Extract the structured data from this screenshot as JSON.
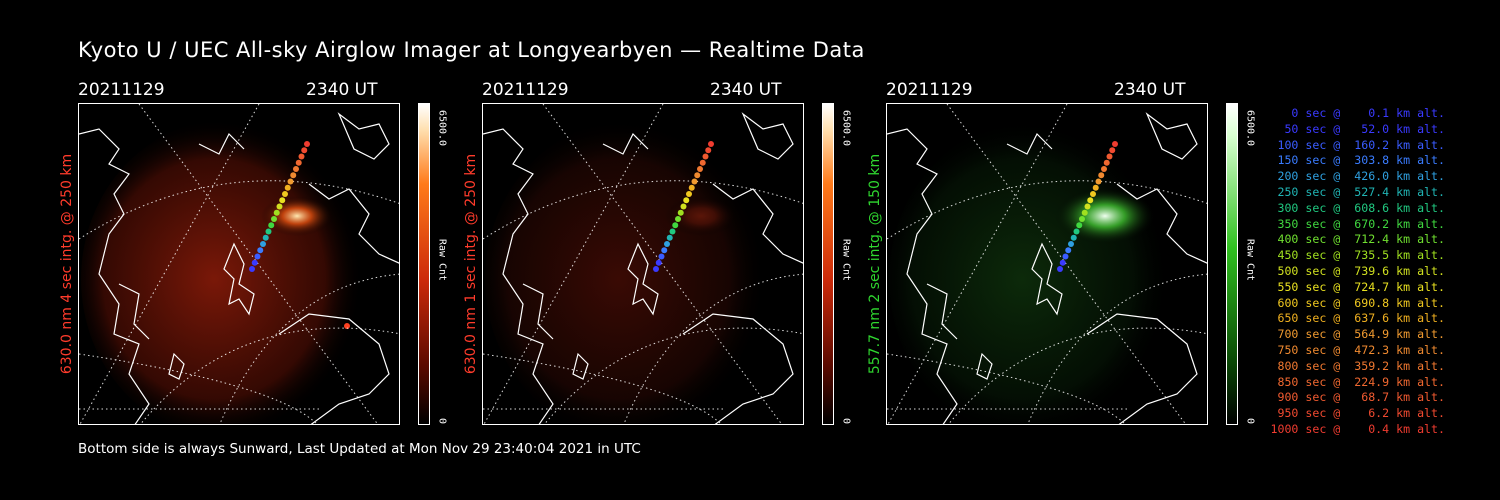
{
  "title": "Kyoto U / UEC All-sky Airglow Imager at Longyearbyen — Realtime Data",
  "panels": [
    {
      "date": "20211129",
      "time": "2340 UT",
      "side_label": "630.0 nm 4 sec intg. @ 250 km",
      "label_color": "#ff3b2b",
      "cbar_max": "6500.0",
      "cbar_min": "0",
      "cbar_unit": "Raw Cnt",
      "channel": "red",
      "glow": "strong"
    },
    {
      "date": "20211129",
      "time": "2340 UT",
      "side_label": "630.0 nm 1 sec intg. @ 250 km",
      "label_color": "#ff3b2b",
      "cbar_max": "6500.0",
      "cbar_min": "0",
      "cbar_unit": "Raw Cnt",
      "channel": "red",
      "glow": "weak"
    },
    {
      "date": "20211129",
      "time": "2340 UT",
      "side_label": "557.7 nm 2 sec intg. @ 150 km",
      "label_color": "#2fd62f",
      "cbar_max": "6500.0",
      "cbar_min": "0",
      "cbar_unit": "Raw Cnt",
      "channel": "green",
      "glow": "green"
    }
  ],
  "footer": "Bottom side is always Sunward, Last Updated at Mon Nov 29 23:40:04 2021 in UTC",
  "legend": [
    {
      "text": "   0 sec @    0.1 km alt.",
      "color": "#3a3aff"
    },
    {
      "text": "  50 sec @   52.0 km alt.",
      "color": "#3a3aff"
    },
    {
      "text": " 100 sec @  160.2 km alt.",
      "color": "#3a5cff"
    },
    {
      "text": " 150 sec @  303.8 km alt.",
      "color": "#3a7cff"
    },
    {
      "text": " 200 sec @  426.0 km alt.",
      "color": "#2fa0e0"
    },
    {
      "text": " 250 sec @  527.4 km alt.",
      "color": "#20b4b4"
    },
    {
      "text": " 300 sec @  608.6 km alt.",
      "color": "#20c880"
    },
    {
      "text": " 350 sec @  670.2 km alt.",
      "color": "#40d840"
    },
    {
      "text": " 400 sec @  712.4 km alt.",
      "color": "#70e030"
    },
    {
      "text": " 450 sec @  735.5 km alt.",
      "color": "#a0e020"
    },
    {
      "text": " 500 sec @  739.6 km alt.",
      "color": "#d0e020"
    },
    {
      "text": " 550 sec @  724.7 km alt.",
      "color": "#e8e020"
    },
    {
      "text": " 600 sec @  690.8 km alt.",
      "color": "#f0c820"
    },
    {
      "text": " 650 sec @  637.6 km alt.",
      "color": "#f0b020"
    },
    {
      "text": " 700 sec @  564.9 km alt.",
      "color": "#f09a30"
    },
    {
      "text": " 750 sec @  472.3 km alt.",
      "color": "#f08a30"
    },
    {
      "text": " 800 sec @  359.2 km alt.",
      "color": "#f07830"
    },
    {
      "text": " 850 sec @  224.9 km alt.",
      "color": "#f06830"
    },
    {
      "text": " 900 sec @   68.7 km alt.",
      "color": "#f05a30"
    },
    {
      "text": " 950 sec @    6.2 km alt.",
      "color": "#f04a30"
    },
    {
      "text": "1000 sec @    0.4 km alt.",
      "color": "#f03c30"
    }
  ]
}
